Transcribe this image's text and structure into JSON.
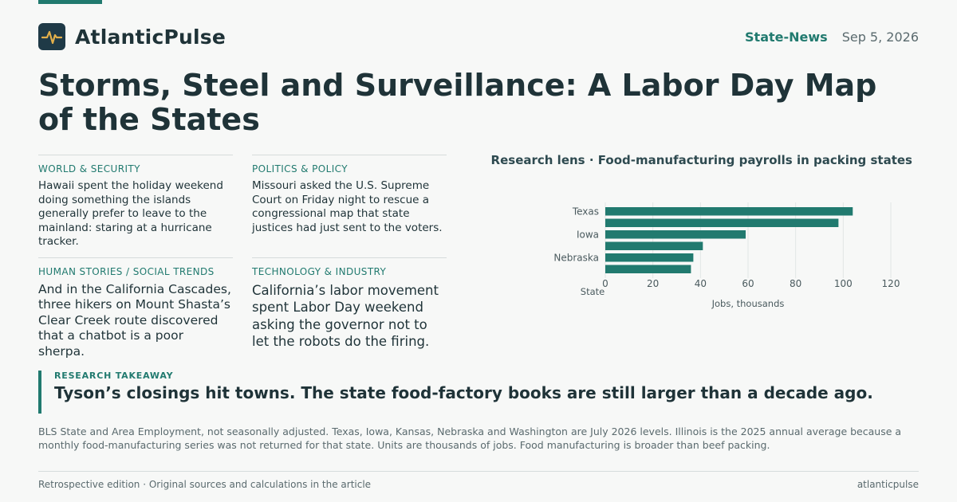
{
  "brand": {
    "name": "AtlanticPulse",
    "logo_icon": "pulse-icon",
    "accent": "#217a6f",
    "logo_bg": "#1f3a47",
    "logo_stroke": "#e3b04b"
  },
  "header": {
    "section": "State-News",
    "date": "Sep 5, 2026"
  },
  "headline": "Storms, Steel and Surveillance: A Labor Day Map of the States",
  "briefs": [
    {
      "category": "WORLD & SECURITY",
      "text": "Hawaii spent the holiday weekend doing something the islands generally prefer to leave to the mainland: staring at a hurricane tracker."
    },
    {
      "category": "POLITICS & POLICY",
      "text": "Missouri asked the U.S. Supreme Court on Friday night to rescue a congressional map that state justices had just sent to the voters."
    },
    {
      "category": "HUMAN STORIES / SOCIAL TRENDS",
      "text": "And in the California Cascades, three hikers on Mount Shasta’s Clear Creek route discovered that a chatbot is a poor sherpa."
    },
    {
      "category": "TECHNOLOGY & INDUSTRY",
      "text": "California’s labor movement spent Labor Day weekend asking the governor not to let the robots do the firing."
    }
  ],
  "chart_data": {
    "type": "bar",
    "orientation": "horizontal",
    "title": "Research lens · Food-manufacturing payrolls in packing states",
    "xlabel": "Jobs, thousands",
    "ylabel": "State",
    "categories": [
      "Texas",
      "",
      "Iowa",
      "",
      "Nebraska",
      ""
    ],
    "values": [
      104,
      98,
      59,
      41,
      37,
      36
    ],
    "xlim": [
      0,
      120
    ],
    "xticks": [
      0,
      20,
      40,
      60,
      80,
      100,
      120
    ],
    "grid": "vertical",
    "bar_color": "#217a6f"
  },
  "takeaway": {
    "label": "RESEARCH TAKEAWAY",
    "text": "Tyson’s closings hit towns. The state food-factory books are still larger than a decade ago."
  },
  "source_note": "BLS State and Area Employment, not seasonally adjusted. Texas, Iowa, Kansas, Nebraska and Washington are July 2026 levels. Illinois is the 2025 annual average because a monthly food-manufacturing series was not returned for that state. Units are thousands of jobs. Food manufacturing is broader than beef packing.",
  "footer": {
    "left": "Retrospective edition · Original sources and calculations in the article",
    "right": "atlanticpulse"
  }
}
